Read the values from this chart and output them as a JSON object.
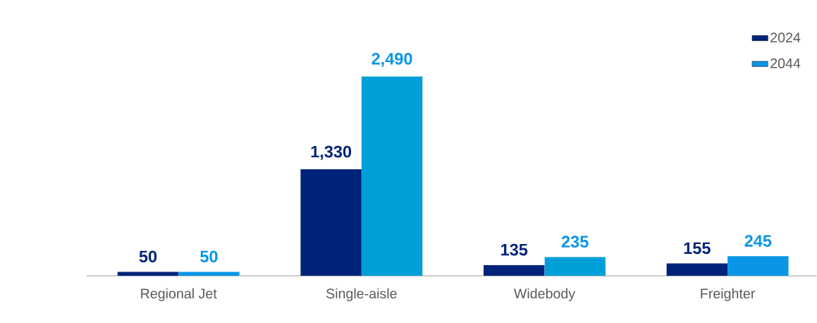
{
  "chart_data": {
    "type": "bar",
    "categories": [
      "Regional Jet",
      "Single-aisle",
      "Widebody",
      "Freighter"
    ],
    "series": [
      {
        "name": "2024",
        "color": "#00237a",
        "values": [
          50,
          1330,
          135,
          155
        ],
        "value_labels": [
          "50",
          "1,330",
          "135",
          "155"
        ]
      },
      {
        "name": "2044",
        "color": "#0a96e6",
        "colors": [
          "#0a96e6",
          "#009fd8",
          "#009fd8",
          "#0a96e6"
        ],
        "values": [
          50,
          2490,
          235,
          245
        ],
        "value_labels": [
          "50",
          "2,490",
          "235",
          "245"
        ]
      }
    ],
    "tick_labels": "x",
    "grid": false,
    "legend": "top right"
  }
}
